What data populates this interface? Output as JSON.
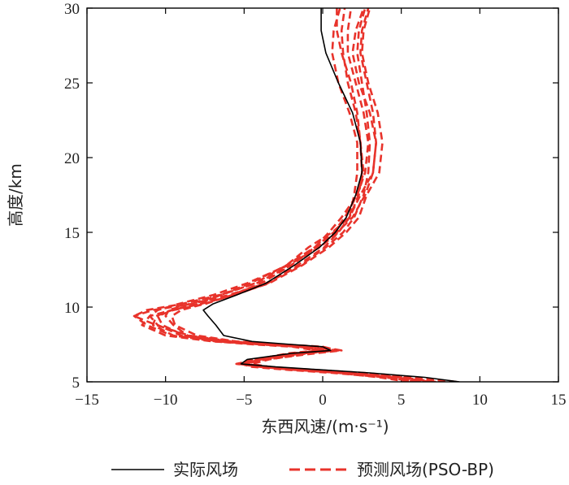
{
  "chart_data": {
    "type": "line",
    "xlabel": "东西风速/(m·s⁻¹)",
    "ylabel": "高度/km",
    "xlim": [
      -15,
      15
    ],
    "ylim": [
      5,
      30
    ],
    "xticks": [
      -15,
      -10,
      -5,
      0,
      5,
      10,
      15
    ],
    "yticks": [
      5,
      10,
      15,
      20,
      25,
      30
    ],
    "xtick_labels": [
      "−15",
      "−10",
      "−5",
      "0",
      "5",
      "10",
      "15"
    ],
    "ytick_labels": [
      "5",
      "10",
      "15",
      "20",
      "25",
      "30"
    ],
    "legend_position": "bottom",
    "series": [
      {
        "name": "实际风场",
        "color": "#000000",
        "style": "solid",
        "points": [
          [
            8.7,
            5.0
          ],
          [
            6.5,
            5.3
          ],
          [
            3.0,
            5.6
          ],
          [
            0.0,
            5.8
          ],
          [
            -3.0,
            6.0
          ],
          [
            -5.2,
            6.2
          ],
          [
            -4.8,
            6.5
          ],
          [
            -2.0,
            6.9
          ],
          [
            0.5,
            7.1
          ],
          [
            0.0,
            7.35
          ],
          [
            -2.0,
            7.5
          ],
          [
            -4.5,
            7.7
          ],
          [
            -6.3,
            8.1
          ],
          [
            -6.8,
            8.8
          ],
          [
            -7.3,
            9.4
          ],
          [
            -7.6,
            9.8
          ],
          [
            -7.0,
            10.2
          ],
          [
            -5.5,
            10.8
          ],
          [
            -3.6,
            11.6
          ],
          [
            -1.8,
            12.8
          ],
          [
            -0.2,
            14.0
          ],
          [
            0.8,
            15.0
          ],
          [
            1.5,
            16.0
          ],
          [
            2.1,
            17.5
          ],
          [
            2.5,
            19.0
          ],
          [
            2.4,
            21.0
          ],
          [
            1.9,
            23.0
          ],
          [
            1.0,
            25.0
          ],
          [
            0.2,
            27.0
          ],
          [
            -0.1,
            28.5
          ],
          [
            -0.1,
            30.0
          ]
        ]
      },
      {
        "name": "预测风场(PSO-BP)",
        "color": "#e8332b",
        "style": "dashed",
        "runs": [
          [
            [
              8.5,
              5.0
            ],
            [
              6.0,
              5.3
            ],
            [
              2.6,
              5.6
            ],
            [
              -0.5,
              5.8
            ],
            [
              -3.5,
              6.0
            ],
            [
              -5.4,
              6.2
            ],
            [
              -4.5,
              6.5
            ],
            [
              -1.5,
              6.9
            ],
            [
              1.0,
              7.1
            ],
            [
              0.0,
              7.35
            ],
            [
              -2.5,
              7.5
            ],
            [
              -5.5,
              7.7
            ],
            [
              -8.6,
              8.1
            ],
            [
              -9.5,
              8.8
            ],
            [
              -10.0,
              9.4
            ],
            [
              -9.8,
              9.8
            ],
            [
              -8.5,
              10.2
            ],
            [
              -6.5,
              10.8
            ],
            [
              -4.3,
              11.6
            ],
            [
              -2.3,
              12.8
            ],
            [
              -0.9,
              14.0
            ],
            [
              0.6,
              15.0
            ],
            [
              1.7,
              16.0
            ],
            [
              2.0,
              17.5
            ],
            [
              2.2,
              19.0
            ],
            [
              2.2,
              21.0
            ],
            [
              1.7,
              23.0
            ],
            [
              1.0,
              25.0
            ],
            [
              0.6,
              27.0
            ],
            [
              0.7,
              28.5
            ],
            [
              1.1,
              30.0
            ]
          ],
          [
            [
              7.2,
              5.0
            ],
            [
              5.0,
              5.3
            ],
            [
              1.8,
              5.6
            ],
            [
              -1.0,
              5.8
            ],
            [
              -3.5,
              6.0
            ],
            [
              -5.4,
              6.2
            ],
            [
              -4.2,
              6.5
            ],
            [
              -1.2,
              6.9
            ],
            [
              0.4,
              7.1
            ],
            [
              -1.3,
              7.35
            ],
            [
              -3.5,
              7.5
            ],
            [
              -7.0,
              7.7
            ],
            [
              -10.0,
              8.1
            ],
            [
              -11.5,
              8.8
            ],
            [
              -11.0,
              9.4
            ],
            [
              -9.6,
              9.8
            ],
            [
              -8.0,
              10.2
            ],
            [
              -6.5,
              10.8
            ],
            [
              -4.6,
              11.6
            ],
            [
              -2.3,
              12.8
            ],
            [
              -0.5,
              14.0
            ],
            [
              0.7,
              15.0
            ],
            [
              1.4,
              16.0
            ],
            [
              2.2,
              17.5
            ],
            [
              2.7,
              19.0
            ],
            [
              2.9,
              21.0
            ],
            [
              2.6,
              23.0
            ],
            [
              2.1,
              25.0
            ],
            [
              1.6,
              27.0
            ],
            [
              1.6,
              28.5
            ],
            [
              1.8,
              30.0
            ]
          ],
          [
            [
              5.5,
              5.0
            ],
            [
              3.6,
              5.3
            ],
            [
              1.0,
              5.6
            ],
            [
              -1.5,
              5.8
            ],
            [
              -3.6,
              6.0
            ],
            [
              -5.0,
              6.2
            ],
            [
              -4.0,
              6.5
            ],
            [
              -1.8,
              6.9
            ],
            [
              0.0,
              7.1
            ],
            [
              -1.5,
              7.35
            ],
            [
              -4.0,
              7.5
            ],
            [
              -6.6,
              7.7
            ],
            [
              -9.0,
              8.1
            ],
            [
              -10.5,
              8.8
            ],
            [
              -11.0,
              9.4
            ],
            [
              -10.5,
              9.8
            ],
            [
              -9.2,
              10.2
            ],
            [
              -7.0,
              10.8
            ],
            [
              -4.8,
              11.6
            ],
            [
              -2.2,
              12.8
            ],
            [
              -0.2,
              14.0
            ],
            [
              1.0,
              15.0
            ],
            [
              1.7,
              16.0
            ],
            [
              2.3,
              17.5
            ],
            [
              2.5,
              19.0
            ],
            [
              2.4,
              21.0
            ],
            [
              2.1,
              23.0
            ],
            [
              1.6,
              25.0
            ],
            [
              1.3,
              27.0
            ],
            [
              1.2,
              28.5
            ],
            [
              1.4,
              30.0
            ]
          ],
          [
            [
              7.0,
              5.0
            ],
            [
              4.8,
              5.3
            ],
            [
              1.3,
              5.6
            ],
            [
              -1.8,
              5.8
            ],
            [
              -4.0,
              6.0
            ],
            [
              -5.5,
              6.2
            ],
            [
              -4.2,
              6.5
            ],
            [
              -2.2,
              6.9
            ],
            [
              -0.4,
              7.1
            ],
            [
              -1.9,
              7.35
            ],
            [
              -4.4,
              7.5
            ],
            [
              -6.8,
              7.7
            ],
            [
              -9.5,
              8.1
            ],
            [
              -10.8,
              8.8
            ],
            [
              -10.6,
              9.4
            ],
            [
              -9.6,
              9.8
            ],
            [
              -7.8,
              10.2
            ],
            [
              -5.6,
              10.8
            ],
            [
              -3.5,
              11.6
            ],
            [
              -1.6,
              12.8
            ],
            [
              0.1,
              14.0
            ],
            [
              1.0,
              15.0
            ],
            [
              1.7,
              16.0
            ],
            [
              2.4,
              17.5
            ],
            [
              3.2,
              19.0
            ],
            [
              3.4,
              21.0
            ],
            [
              3.0,
              23.0
            ],
            [
              2.3,
              25.0
            ],
            [
              1.9,
              27.0
            ],
            [
              2.1,
              28.5
            ],
            [
              2.6,
              30.0
            ]
          ],
          [
            [
              6.2,
              5.0
            ],
            [
              4.2,
              5.3
            ],
            [
              1.2,
              5.6
            ],
            [
              -1.4,
              5.8
            ],
            [
              -3.4,
              6.0
            ],
            [
              -4.5,
              6.2
            ],
            [
              -3.4,
              6.5
            ],
            [
              -1.0,
              6.9
            ],
            [
              0.8,
              7.1
            ],
            [
              -0.5,
              7.35
            ],
            [
              -3.0,
              7.5
            ],
            [
              -6.0,
              7.7
            ],
            [
              -8.8,
              8.1
            ],
            [
              -10.2,
              8.8
            ],
            [
              -10.5,
              9.4
            ],
            [
              -9.5,
              9.8
            ],
            [
              -7.5,
              10.2
            ],
            [
              -5.8,
              10.8
            ],
            [
              -3.9,
              11.6
            ],
            [
              -2.0,
              12.8
            ],
            [
              -0.5,
              14.0
            ],
            [
              0.4,
              15.0
            ],
            [
              1.2,
              16.0
            ],
            [
              2.2,
              17.5
            ],
            [
              2.6,
              19.0
            ],
            [
              2.4,
              21.0
            ],
            [
              2.2,
              23.0
            ],
            [
              1.8,
              25.0
            ],
            [
              1.2,
              27.0
            ],
            [
              0.9,
              28.5
            ],
            [
              0.9,
              30.0
            ]
          ],
          [
            [
              6.0,
              5.0
            ],
            [
              4.0,
              5.3
            ],
            [
              0.6,
              5.6
            ],
            [
              -2.2,
              5.8
            ],
            [
              -4.5,
              6.0
            ],
            [
              -5.2,
              6.2
            ],
            [
              -4.4,
              6.5
            ],
            [
              -2.0,
              6.9
            ],
            [
              0.0,
              7.1
            ],
            [
              -0.9,
              7.35
            ],
            [
              -3.3,
              7.5
            ],
            [
              -5.8,
              7.7
            ],
            [
              -8.5,
              8.1
            ],
            [
              -10.6,
              8.8
            ],
            [
              -12.0,
              9.4
            ],
            [
              -11.2,
              9.8
            ],
            [
              -9.0,
              10.2
            ],
            [
              -6.6,
              10.8
            ],
            [
              -4.2,
              11.6
            ],
            [
              -2.0,
              12.8
            ],
            [
              -0.4,
              14.0
            ],
            [
              0.9,
              15.0
            ],
            [
              1.9,
              16.0
            ],
            [
              2.7,
              17.5
            ],
            [
              3.2,
              19.0
            ],
            [
              3.4,
              21.0
            ],
            [
              3.2,
              23.0
            ],
            [
              2.8,
              25.0
            ],
            [
              2.4,
              27.0
            ],
            [
              2.5,
              28.5
            ],
            [
              2.9,
              30.0
            ]
          ],
          [
            [
              7.8,
              5.0
            ],
            [
              5.4,
              5.3
            ],
            [
              2.0,
              5.6
            ],
            [
              -1.0,
              5.8
            ],
            [
              -3.6,
              6.0
            ],
            [
              -5.0,
              6.2
            ],
            [
              -3.9,
              6.5
            ],
            [
              -1.4,
              6.9
            ],
            [
              0.5,
              7.1
            ],
            [
              -0.8,
              7.35
            ],
            [
              -3.4,
              7.5
            ],
            [
              -6.2,
              7.7
            ],
            [
              -9.6,
              8.1
            ],
            [
              -11.2,
              8.8
            ],
            [
              -12.0,
              9.4
            ],
            [
              -10.8,
              9.8
            ],
            [
              -8.4,
              10.2
            ],
            [
              -6.0,
              10.8
            ],
            [
              -3.6,
              11.6
            ],
            [
              -1.4,
              12.8
            ],
            [
              0.2,
              14.0
            ],
            [
              1.3,
              15.0
            ],
            [
              2.0,
              16.0
            ],
            [
              2.6,
              17.5
            ],
            [
              2.9,
              19.0
            ],
            [
              3.0,
              21.0
            ],
            [
              2.8,
              23.0
            ],
            [
              2.5,
              25.0
            ],
            [
              2.2,
              27.0
            ],
            [
              2.3,
              28.5
            ],
            [
              2.7,
              30.0
            ]
          ],
          [
            [
              6.8,
              5.0
            ],
            [
              4.6,
              5.3
            ],
            [
              1.5,
              5.6
            ],
            [
              -1.2,
              5.8
            ],
            [
              -3.4,
              6.0
            ],
            [
              -5.0,
              6.2
            ],
            [
              -3.6,
              6.5
            ],
            [
              -0.5,
              6.9
            ],
            [
              1.2,
              7.1
            ],
            [
              -0.2,
              7.35
            ],
            [
              -2.8,
              7.5
            ],
            [
              -5.5,
              7.7
            ],
            [
              -8.0,
              8.1
            ],
            [
              -9.4,
              8.8
            ],
            [
              -9.6,
              9.4
            ],
            [
              -9.0,
              9.8
            ],
            [
              -7.6,
              10.2
            ],
            [
              -5.7,
              10.8
            ],
            [
              -3.4,
              11.6
            ],
            [
              -1.3,
              12.8
            ],
            [
              0.4,
              14.0
            ],
            [
              1.5,
              15.0
            ],
            [
              2.3,
              16.0
            ],
            [
              2.8,
              17.5
            ],
            [
              3.6,
              19.0
            ],
            [
              3.8,
              21.0
            ],
            [
              3.5,
              23.0
            ],
            [
              2.9,
              25.0
            ],
            [
              2.5,
              27.0
            ],
            [
              2.6,
              28.5
            ],
            [
              3.0,
              30.0
            ]
          ]
        ]
      }
    ]
  }
}
